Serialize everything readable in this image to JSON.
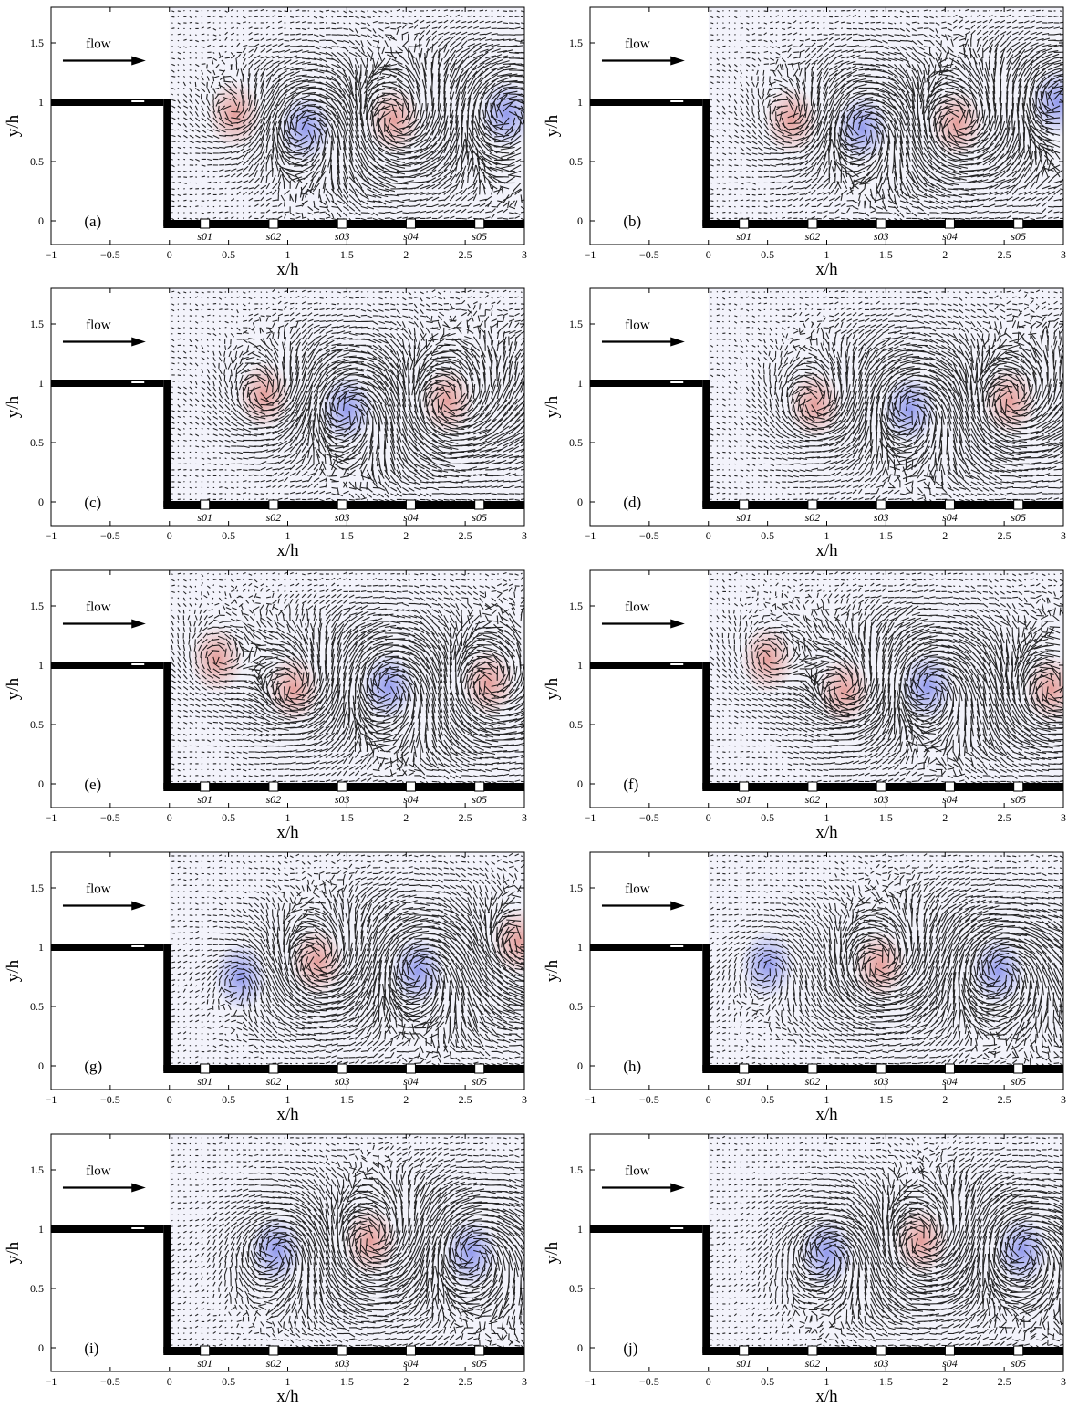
{
  "figure": {
    "flow_label": "flow",
    "colors": {
      "positive_vorticity": "#e49a96",
      "negative_vorticity": "#8f97ec",
      "vectors": "#000000",
      "wall": "#000000"
    }
  },
  "chart_data": [
    {
      "type": "vector-field",
      "panel_label": "(a)",
      "xlabel": "x/h",
      "ylabel": "y/h",
      "xlim": [
        -1,
        3
      ],
      "ylim": [
        -0.2,
        1.8
      ],
      "xticks": [
        -1,
        -0.5,
        0,
        0.5,
        1,
        1.5,
        2,
        2.5,
        3
      ],
      "xtick_labels": [
        "−1",
        "−0.5",
        "0",
        "0.5",
        "1",
        "1.5",
        "2",
        "2.5",
        "3"
      ],
      "yticks": [
        0,
        0.5,
        1,
        1.5
      ],
      "ytick_labels": [
        "0",
        "0.5",
        "1",
        "1.5"
      ],
      "sensors": [
        {
          "label": "s01",
          "x": 0.3
        },
        {
          "label": "s02",
          "x": 0.88
        },
        {
          "label": "s03",
          "x": 1.46
        },
        {
          "label": "s04",
          "x": 2.04
        },
        {
          "label": "s05",
          "x": 2.62
        }
      ],
      "vortices": [
        {
          "x": 0.55,
          "y": 0.9,
          "sign": 1,
          "strength": 0.4
        },
        {
          "x": 1.15,
          "y": 0.78,
          "sign": -1,
          "strength": 0.8
        },
        {
          "x": 1.9,
          "y": 0.85,
          "sign": 1,
          "strength": 0.9
        },
        {
          "x": 2.85,
          "y": 0.9,
          "sign": -1,
          "strength": 1.0
        }
      ]
    },
    {
      "type": "vector-field",
      "panel_label": "(b)",
      "xlabel": "x/h",
      "ylabel": "y/h",
      "xlim": [
        -1,
        3
      ],
      "ylim": [
        -0.2,
        1.8
      ],
      "xticks": [
        -1,
        -0.5,
        0,
        0.5,
        1,
        1.5,
        2,
        2.5,
        3
      ],
      "xtick_labels": [
        "−1",
        "−0.5",
        "0",
        "0.5",
        "1",
        "1.5",
        "2",
        "2.5",
        "3"
      ],
      "yticks": [
        0,
        0.5,
        1,
        1.5
      ],
      "ytick_labels": [
        "0",
        "0.5",
        "1",
        "1.5"
      ],
      "sensors": [
        {
          "label": "s01",
          "x": 0.3
        },
        {
          "label": "s02",
          "x": 0.88
        },
        {
          "label": "s03",
          "x": 1.46
        },
        {
          "label": "s04",
          "x": 2.04
        },
        {
          "label": "s05",
          "x": 2.62
        }
      ],
      "vortices": [
        {
          "x": 0.7,
          "y": 0.85,
          "sign": 1,
          "strength": 0.5
        },
        {
          "x": 1.3,
          "y": 0.78,
          "sign": -1,
          "strength": 0.8
        },
        {
          "x": 2.1,
          "y": 0.82,
          "sign": 1,
          "strength": 0.9
        },
        {
          "x": 2.95,
          "y": 1.0,
          "sign": -1,
          "strength": 0.8
        }
      ]
    },
    {
      "type": "vector-field",
      "panel_label": "(c)",
      "xlabel": "x/h",
      "ylabel": "y/h",
      "xlim": [
        -1,
        3
      ],
      "ylim": [
        -0.2,
        1.8
      ],
      "xticks": [
        -1,
        -0.5,
        0,
        0.5,
        1,
        1.5,
        2,
        2.5,
        3
      ],
      "xtick_labels": [
        "−1",
        "−0.5",
        "0",
        "0.5",
        "1",
        "1.5",
        "2",
        "2.5",
        "3"
      ],
      "yticks": [
        0,
        0.5,
        1,
        1.5
      ],
      "ytick_labels": [
        "0",
        "0.5",
        "1",
        "1.5"
      ],
      "sensors": [
        {
          "label": "s01",
          "x": 0.3
        },
        {
          "label": "s02",
          "x": 0.88
        },
        {
          "label": "s03",
          "x": 1.46
        },
        {
          "label": "s04",
          "x": 2.04
        },
        {
          "label": "s05",
          "x": 2.62
        }
      ],
      "vortices": [
        {
          "x": 0.8,
          "y": 0.9,
          "sign": 1,
          "strength": 0.6
        },
        {
          "x": 1.5,
          "y": 0.78,
          "sign": -1,
          "strength": 0.8
        },
        {
          "x": 2.35,
          "y": 0.85,
          "sign": 1,
          "strength": 0.9
        }
      ]
    },
    {
      "type": "vector-field",
      "panel_label": "(d)",
      "xlabel": "x/h",
      "ylabel": "y/h",
      "xlim": [
        -1,
        3
      ],
      "ylim": [
        -0.2,
        1.8
      ],
      "xticks": [
        -1,
        -0.5,
        0,
        0.5,
        1,
        1.5,
        2,
        2.5,
        3
      ],
      "xtick_labels": [
        "−1",
        "−0.5",
        "0",
        "0.5",
        "1",
        "1.5",
        "2",
        "2.5",
        "3"
      ],
      "yticks": [
        0,
        0.5,
        1,
        1.5
      ],
      "ytick_labels": [
        "0",
        "0.5",
        "1",
        "1.5"
      ],
      "sensors": [
        {
          "label": "s01",
          "x": 0.3
        },
        {
          "label": "s02",
          "x": 0.88
        },
        {
          "label": "s03",
          "x": 1.46
        },
        {
          "label": "s04",
          "x": 2.04
        },
        {
          "label": "s05",
          "x": 2.62
        }
      ],
      "vortices": [
        {
          "x": 0.9,
          "y": 0.82,
          "sign": 1,
          "strength": 0.7
        },
        {
          "x": 1.7,
          "y": 0.78,
          "sign": -1,
          "strength": 0.8
        },
        {
          "x": 2.55,
          "y": 0.85,
          "sign": 1,
          "strength": 0.8
        }
      ]
    },
    {
      "type": "vector-field",
      "panel_label": "(e)",
      "xlabel": "x/h",
      "ylabel": "y/h",
      "xlim": [
        -1,
        3
      ],
      "ylim": [
        -0.2,
        1.8
      ],
      "xticks": [
        -1,
        -0.5,
        0,
        0.5,
        1,
        1.5,
        2,
        2.5,
        3
      ],
      "xtick_labels": [
        "−1",
        "−0.5",
        "0",
        "0.5",
        "1",
        "1.5",
        "2",
        "2.5",
        "3"
      ],
      "yticks": [
        0,
        0.5,
        1,
        1.5
      ],
      "ytick_labels": [
        "0",
        "0.5",
        "1",
        "1.5"
      ],
      "sensors": [
        {
          "label": "s01",
          "x": 0.3
        },
        {
          "label": "s02",
          "x": 0.88
        },
        {
          "label": "s03",
          "x": 1.46
        },
        {
          "label": "s04",
          "x": 2.04
        },
        {
          "label": "s05",
          "x": 2.62
        }
      ],
      "vortices": [
        {
          "x": 0.4,
          "y": 1.05,
          "sign": 1,
          "strength": 0.4
        },
        {
          "x": 1.05,
          "y": 0.8,
          "sign": 1,
          "strength": 0.7
        },
        {
          "x": 1.85,
          "y": 0.82,
          "sign": -1,
          "strength": 0.9
        },
        {
          "x": 2.7,
          "y": 0.85,
          "sign": 1,
          "strength": 0.9
        }
      ]
    },
    {
      "type": "vector-field",
      "panel_label": "(f)",
      "xlabel": "x/h",
      "ylabel": "y/h",
      "xlim": [
        -1,
        3
      ],
      "ylim": [
        -0.2,
        1.8
      ],
      "xticks": [
        -1,
        -0.5,
        0,
        0.5,
        1,
        1.5,
        2,
        2.5,
        3
      ],
      "xtick_labels": [
        "−1",
        "−0.5",
        "0",
        "0.5",
        "1",
        "1.5",
        "2",
        "2.5",
        "3"
      ],
      "yticks": [
        0,
        0.5,
        1,
        1.5
      ],
      "ytick_labels": [
        "0",
        "0.5",
        "1",
        "1.5"
      ],
      "sensors": [
        {
          "label": "s01",
          "x": 0.3
        },
        {
          "label": "s02",
          "x": 0.88
        },
        {
          "label": "s03",
          "x": 1.46
        },
        {
          "label": "s04",
          "x": 2.04
        },
        {
          "label": "s05",
          "x": 2.62
        }
      ],
      "vortices": [
        {
          "x": 0.5,
          "y": 1.05,
          "sign": 1,
          "strength": 0.4
        },
        {
          "x": 1.15,
          "y": 0.78,
          "sign": 1,
          "strength": 0.7
        },
        {
          "x": 1.85,
          "y": 0.82,
          "sign": -1,
          "strength": 0.8
        },
        {
          "x": 2.9,
          "y": 0.8,
          "sign": 1,
          "strength": 0.8
        }
      ]
    },
    {
      "type": "vector-field",
      "panel_label": "(g)",
      "xlabel": "x/h",
      "ylabel": "y/h",
      "xlim": [
        -1,
        3
      ],
      "ylim": [
        -0.2,
        1.8
      ],
      "xticks": [
        -1,
        -0.5,
        0,
        0.5,
        1,
        1.5,
        2,
        2.5,
        3
      ],
      "xtick_labels": [
        "−1",
        "−0.5",
        "0",
        "0.5",
        "1",
        "1.5",
        "2",
        "2.5",
        "3"
      ],
      "yticks": [
        0,
        0.5,
        1,
        1.5
      ],
      "ytick_labels": [
        "0",
        "0.5",
        "1",
        "1.5"
      ],
      "sensors": [
        {
          "label": "s01",
          "x": 0.3
        },
        {
          "label": "s02",
          "x": 0.88
        },
        {
          "label": "s03",
          "x": 1.46
        },
        {
          "label": "s04",
          "x": 2.04
        },
        {
          "label": "s05",
          "x": 2.62
        }
      ],
      "vortices": [
        {
          "x": 1.25,
          "y": 0.88,
          "sign": 1,
          "strength": 0.8
        },
        {
          "x": 2.1,
          "y": 0.8,
          "sign": -1,
          "strength": 0.8
        },
        {
          "x": 2.95,
          "y": 1.05,
          "sign": 1,
          "strength": 0.6
        },
        {
          "x": 0.6,
          "y": 0.75,
          "sign": -1,
          "strength": 0.3
        }
      ]
    },
    {
      "type": "vector-field",
      "panel_label": "(h)",
      "xlabel": "x/h",
      "ylabel": "y/h",
      "xlim": [
        -1,
        3
      ],
      "ylim": [
        -0.2,
        1.8
      ],
      "xticks": [
        -1,
        -0.5,
        0,
        0.5,
        1,
        1.5,
        2,
        2.5,
        3
      ],
      "xtick_labels": [
        "−1",
        "−0.5",
        "0",
        "0.5",
        "1",
        "1.5",
        "2",
        "2.5",
        "3"
      ],
      "yticks": [
        0,
        0.5,
        1,
        1.5
      ],
      "ytick_labels": [
        "0",
        "0.5",
        "1",
        "1.5"
      ],
      "sensors": [
        {
          "label": "s01",
          "x": 0.3
        },
        {
          "label": "s02",
          "x": 0.88
        },
        {
          "label": "s03",
          "x": 1.46
        },
        {
          "label": "s04",
          "x": 2.04
        },
        {
          "label": "s05",
          "x": 2.62
        }
      ],
      "vortices": [
        {
          "x": 0.5,
          "y": 0.85,
          "sign": -1,
          "strength": 0.4
        },
        {
          "x": 1.45,
          "y": 0.85,
          "sign": 1,
          "strength": 0.8
        },
        {
          "x": 2.45,
          "y": 0.8,
          "sign": -1,
          "strength": 0.9
        }
      ]
    },
    {
      "type": "vector-field",
      "panel_label": "(i)",
      "xlabel": "x/h",
      "ylabel": "y/h",
      "xlim": [
        -1,
        3
      ],
      "ylim": [
        -0.2,
        1.8
      ],
      "xticks": [
        -1,
        -0.5,
        0,
        0.5,
        1,
        1.5,
        2,
        2.5,
        3
      ],
      "xtick_labels": [
        "−1",
        "−0.5",
        "0",
        "0.5",
        "1",
        "1.5",
        "2",
        "2.5",
        "3"
      ],
      "yticks": [
        0,
        0.5,
        1,
        1.5
      ],
      "ytick_labels": [
        "0",
        "0.5",
        "1",
        "1.5"
      ],
      "sensors": [
        {
          "label": "s01",
          "x": 0.3
        },
        {
          "label": "s02",
          "x": 0.88
        },
        {
          "label": "s03",
          "x": 1.46
        },
        {
          "label": "s04",
          "x": 2.04
        },
        {
          "label": "s05",
          "x": 2.62
        }
      ],
      "vortices": [
        {
          "x": 0.9,
          "y": 0.82,
          "sign": -1,
          "strength": 0.8
        },
        {
          "x": 1.7,
          "y": 0.9,
          "sign": 1,
          "strength": 0.9
        },
        {
          "x": 2.55,
          "y": 0.8,
          "sign": -1,
          "strength": 0.9
        }
      ]
    },
    {
      "type": "vector-field",
      "panel_label": "(j)",
      "xlabel": "x/h",
      "ylabel": "y/h",
      "xlim": [
        -1,
        3
      ],
      "ylim": [
        -0.2,
        1.8
      ],
      "xticks": [
        -1,
        -0.5,
        0,
        0.5,
        1,
        1.5,
        2,
        2.5,
        3
      ],
      "xtick_labels": [
        "−1",
        "−0.5",
        "0",
        "0.5",
        "1",
        "1.5",
        "2",
        "2.5",
        "3"
      ],
      "yticks": [
        0,
        0.5,
        1,
        1.5
      ],
      "ytick_labels": [
        "0",
        "0.5",
        "1",
        "1.5"
      ],
      "sensors": [
        {
          "label": "s01",
          "x": 0.3
        },
        {
          "label": "s02",
          "x": 0.88
        },
        {
          "label": "s03",
          "x": 1.46
        },
        {
          "label": "s04",
          "x": 2.04
        },
        {
          "label": "s05",
          "x": 2.62
        }
      ],
      "vortices": [
        {
          "x": 1.0,
          "y": 0.8,
          "sign": -1,
          "strength": 0.8
        },
        {
          "x": 1.8,
          "y": 0.9,
          "sign": 1,
          "strength": 0.9
        },
        {
          "x": 2.65,
          "y": 0.82,
          "sign": -1,
          "strength": 0.9
        }
      ]
    }
  ]
}
